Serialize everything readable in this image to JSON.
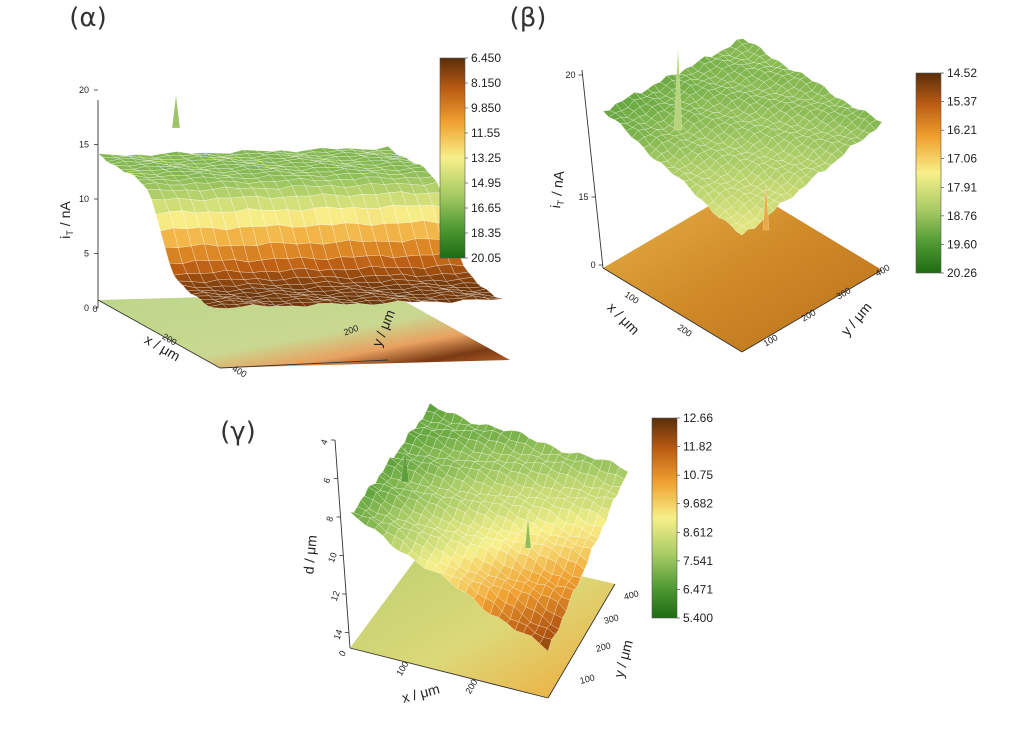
{
  "chart_data": [
    {
      "type": "heatmap",
      "panel_label": "(α)",
      "surface": "3d",
      "zlabel_main": "i",
      "zlabel_sub": "T",
      "zlabel_unit": " / nA",
      "xlabel": "x / μm",
      "ylabel": "y / μm",
      "z_ticks": [
        "0",
        "5",
        "10",
        "15",
        "20"
      ],
      "x_ticks": [
        "200",
        "400"
      ],
      "y_ticks": [
        "200",
        "400"
      ],
      "zlim": [
        0,
        20
      ],
      "colorbar": [
        "6.450",
        "8.150",
        "9.850",
        "11.55",
        "13.25",
        "14.95",
        "16.65",
        "18.35",
        "20.05"
      ],
      "peaks": [
        {
          "x": 80,
          "y": 380,
          "z": 20
        }
      ],
      "description_values": {
        "plateau_z": 16.5,
        "low_z": 6.5
      }
    },
    {
      "type": "heatmap",
      "panel_label": "(β)",
      "surface": "3d",
      "zlabel_main": "i",
      "zlabel_sub": "T",
      "zlabel_unit": " / nA",
      "xlabel": "x / μm",
      "ylabel": "y / μm",
      "z_ticks": [
        "0",
        "15",
        "20"
      ],
      "x_ticks": [
        "100",
        "200"
      ],
      "y_ticks": [
        "100",
        "200",
        "300",
        "400"
      ],
      "zlim": [
        0,
        20
      ],
      "colorbar": [
        "14.52",
        "15.37",
        "16.21",
        "17.06",
        "17.91",
        "18.76",
        "19.60",
        "20.26"
      ],
      "peaks": [
        {
          "x": 60,
          "y": 380,
          "z": 20
        }
      ]
    },
    {
      "type": "heatmap",
      "panel_label": "(γ)",
      "surface": "3d",
      "zlabel_main": "d / μm",
      "zlabel_sub": "",
      "zlabel_unit": "",
      "xlabel": "x / μm",
      "ylabel": "y / μm",
      "z_ticks": [
        "4",
        "6",
        "8",
        "10",
        "12",
        "14"
      ],
      "x_ticks": [
        "0",
        "100",
        "200"
      ],
      "y_ticks": [
        "100",
        "200",
        "300",
        "400"
      ],
      "zlim": [
        4,
        14
      ],
      "colorbar": [
        "12.66",
        "11.82",
        "10.75",
        "9.682",
        "8.612",
        "7.541",
        "6.471",
        "5.400"
      ]
    }
  ]
}
